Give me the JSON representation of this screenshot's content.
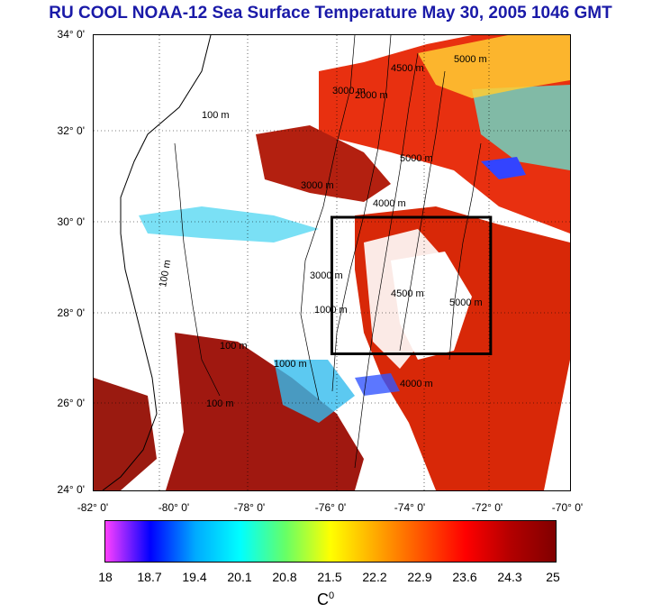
{
  "title": "RU COOL  NOAA-12 Sea Surface Temperature May 30, 2005 1046 GMT",
  "lat_labels": [
    "34° 0'",
    "32° 0'",
    "30° 0'",
    "28° 0'",
    "26° 0'",
    "24° 0'"
  ],
  "lon_labels": [
    "-82° 0'",
    "-80° 0'",
    "-78° 0'",
    "-76° 0'",
    "-74° 0'",
    "-72° 0'",
    "-70° 0'"
  ],
  "lat_range": [
    24,
    34
  ],
  "lon_range": [
    -82,
    -70
  ],
  "study_box": {
    "lon_min": -76,
    "lon_max": -72,
    "lat_min": 27,
    "lat_max": 30
  },
  "contours": [
    {
      "label": "100 m"
    },
    {
      "label": "100 m"
    },
    {
      "label": "100 m"
    },
    {
      "label": "100 m"
    },
    {
      "label": "1000 m"
    },
    {
      "label": "1000 m"
    },
    {
      "label": "2000 m"
    },
    {
      "label": "3000 m"
    },
    {
      "label": "3000 m"
    },
    {
      "label": "3000 m"
    },
    {
      "label": "4000 m"
    },
    {
      "label": "4000 m"
    },
    {
      "label": "4500 m"
    },
    {
      "label": "4500 m"
    },
    {
      "label": "5000 m"
    },
    {
      "label": "5000 m"
    },
    {
      "label": "5000 m"
    }
  ],
  "colorbar": {
    "ticks": [
      "18",
      "18.7",
      "19.4",
      "20.1",
      "20.8",
      "21.5",
      "22.2",
      "22.9",
      "23.6",
      "24.3",
      "25"
    ],
    "unit": "C",
    "unit_sup": "0",
    "min": 18,
    "max": 25,
    "colors": [
      "#ff40ff",
      "#0000ff",
      "#00aaff",
      "#00ffff",
      "#66ff66",
      "#ffff00",
      "#ffaa00",
      "#ff5500",
      "#ff0000",
      "#b30000",
      "#800000"
    ]
  }
}
